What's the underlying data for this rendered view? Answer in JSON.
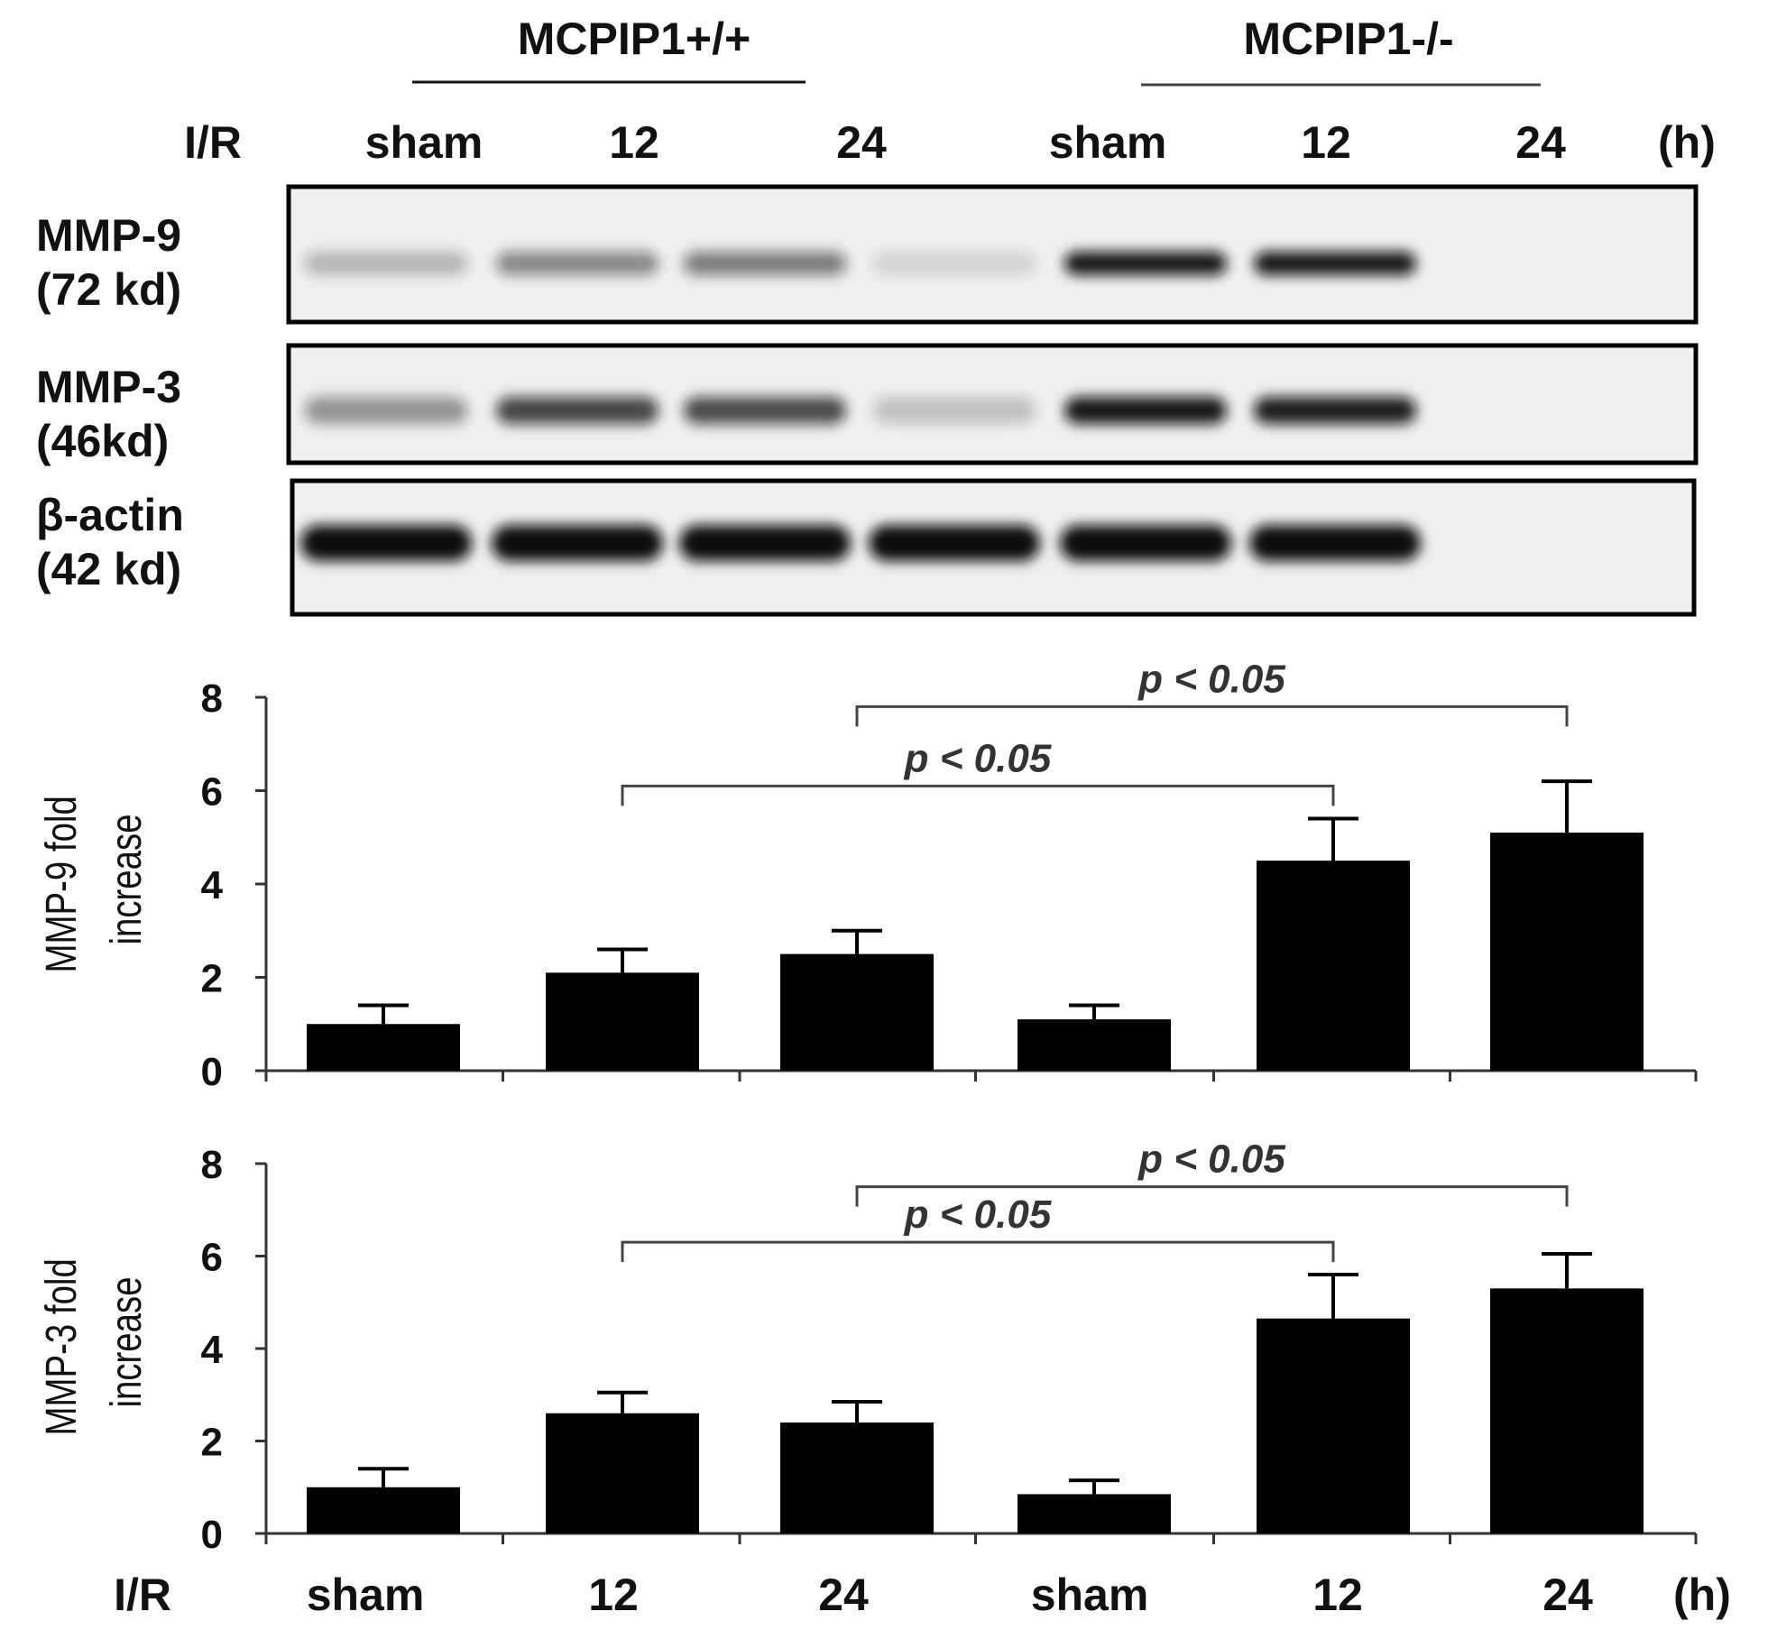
{
  "blot": {
    "groups": [
      {
        "label": "MCPIP1+/+"
      },
      {
        "label": "MCPIP1-/-"
      }
    ],
    "row_label": "I/R",
    "lanes": [
      "sham",
      "12",
      "24",
      "sham",
      "12",
      "24"
    ],
    "unit": "(h)",
    "panels": [
      {
        "name": "MMP-9",
        "size": "(72 kd)",
        "intensity": [
          0.25,
          0.45,
          0.5,
          0.12,
          0.95,
          0.95
        ]
      },
      {
        "name": "MMP-3",
        "size": "(46kd)",
        "intensity": [
          0.4,
          0.75,
          0.72,
          0.2,
          0.95,
          0.92
        ]
      },
      {
        "name": "β-actin",
        "size": "(42 kd)",
        "intensity": [
          1.0,
          1.0,
          1.0,
          1.0,
          1.0,
          1.0
        ]
      }
    ],
    "colors": {
      "band": "#0d0d0d",
      "background": "#efefef",
      "frame": "#000000"
    }
  },
  "chart_data": [
    {
      "type": "bar",
      "categories": [
        "sham",
        "12",
        "24",
        "sham",
        "12",
        "24"
      ],
      "values": [
        1.0,
        2.1,
        2.5,
        1.1,
        4.5,
        5.1
      ],
      "errors": [
        0.4,
        0.5,
        0.5,
        0.3,
        0.9,
        1.1
      ],
      "ylabel": "MMP-9 fold increase",
      "ylabel_lines": [
        "MMP-9 fold",
        "increase"
      ],
      "yticks": [
        0,
        2,
        4,
        6,
        8
      ],
      "ylim": [
        0,
        8
      ],
      "bar_color": "#000000",
      "significance": [
        {
          "from": 2,
          "to": 5,
          "label": "p < 0.05",
          "y": 7.8
        },
        {
          "from": 1,
          "to": 4,
          "label": "p < 0.05",
          "y": 6.1
        }
      ]
    },
    {
      "type": "bar",
      "categories": [
        "sham",
        "12",
        "24",
        "sham",
        "12",
        "24"
      ],
      "values": [
        1.0,
        2.6,
        2.4,
        0.85,
        4.65,
        5.3
      ],
      "errors": [
        0.4,
        0.45,
        0.45,
        0.3,
        0.95,
        0.75
      ],
      "ylabel": "MMP-3 fold increase",
      "ylabel_lines": [
        "MMP-3 fold",
        "increase"
      ],
      "yticks": [
        0,
        2,
        4,
        6,
        8
      ],
      "ylim": [
        0,
        8
      ],
      "bar_color": "#000000",
      "significance": [
        {
          "from": 2,
          "to": 5,
          "label": "p < 0.05",
          "y": 7.5
        },
        {
          "from": 1,
          "to": 4,
          "label": "p < 0.05",
          "y": 6.3
        }
      ]
    }
  ],
  "xaxis": {
    "row_label": "I/R",
    "lanes": [
      "sham",
      "12",
      "24",
      "sham",
      "12",
      "24"
    ],
    "unit": "(h)"
  }
}
